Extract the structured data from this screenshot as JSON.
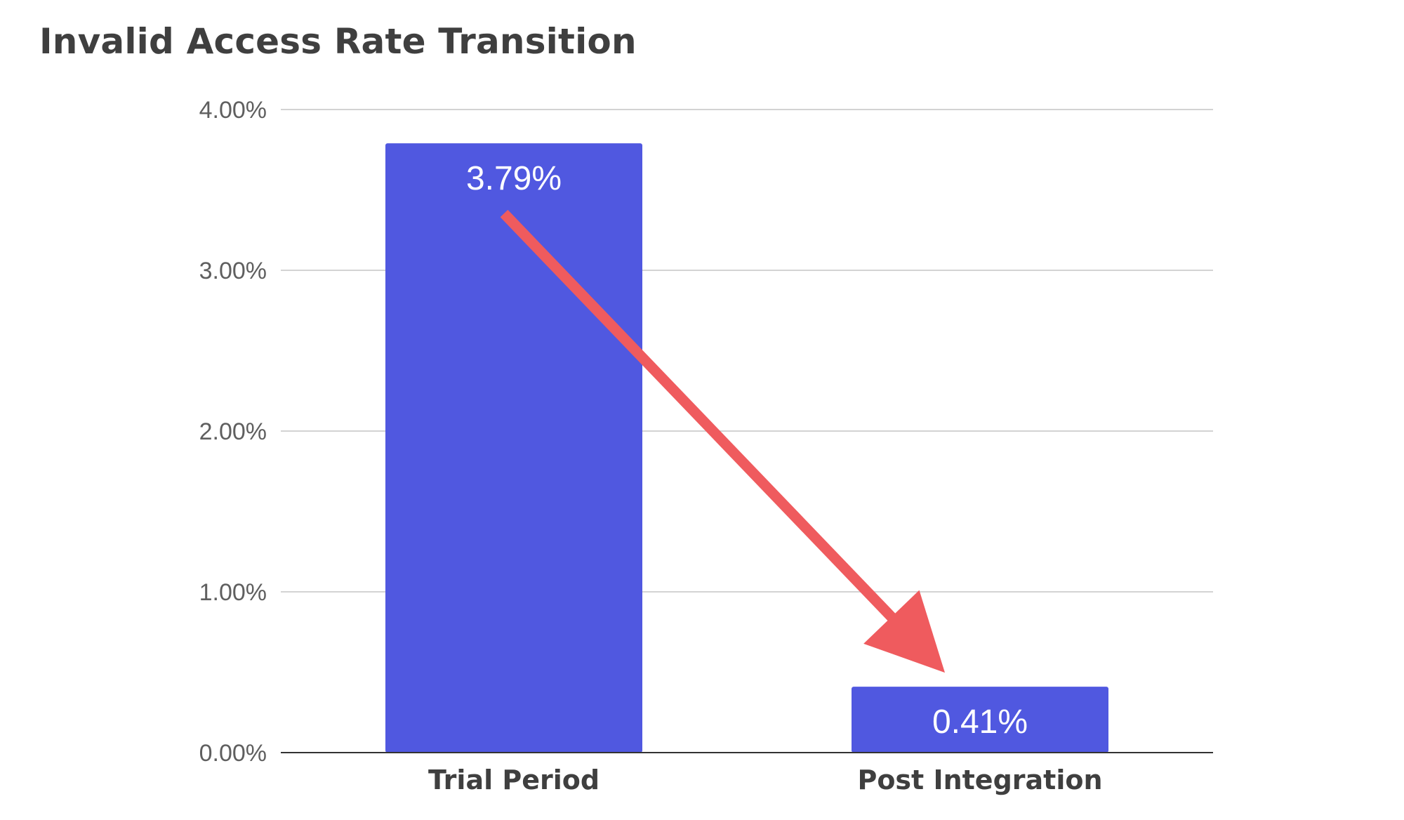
{
  "chart_data": {
    "type": "bar",
    "title": "Invalid Access Rate Transition",
    "categories": [
      "Trial Period",
      "Post Integration"
    ],
    "values": [
      3.79,
      0.41
    ],
    "value_labels": [
      "3.79%",
      "0.41%"
    ],
    "ylim": [
      0,
      4
    ],
    "yticks": [
      0,
      1,
      2,
      3,
      4
    ],
    "ytick_labels": [
      "0.00%",
      "1.00%",
      "2.00%",
      "3.00%",
      "4.00%"
    ],
    "xlabel": "",
    "ylabel": "",
    "grid": true,
    "legend": "none",
    "bar_color": "#5058e0",
    "annotation": {
      "type": "arrow",
      "from_category": "Trial Period",
      "to_category": "Post Integration",
      "color": "#ef5b5e"
    }
  }
}
